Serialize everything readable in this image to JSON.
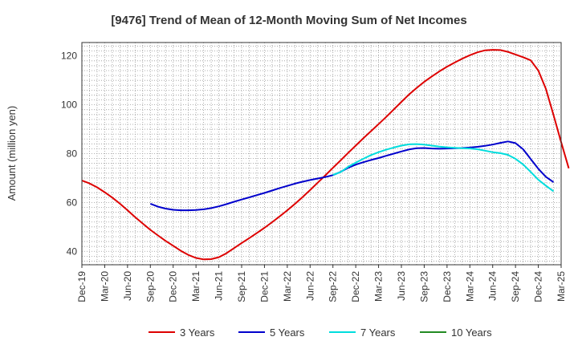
{
  "chart_data": {
    "type": "line",
    "title": "[9476]  Trend of Mean of 12-Month Moving Sum of Net Incomes",
    "ylabel": "Amount (million yen)",
    "xlabel": "",
    "ylim": [
      34.5,
      125.5
    ],
    "yticks": [
      40,
      60,
      80,
      100,
      120
    ],
    "x_ticks": [
      "Dec-19",
      "Mar-20",
      "Jun-20",
      "Sep-20",
      "Dec-20",
      "Mar-21",
      "Jun-21",
      "Sep-21",
      "Dec-21",
      "Mar-22",
      "Jun-22",
      "Sep-22",
      "Dec-22",
      "Mar-23",
      "Jun-23",
      "Sep-23",
      "Dec-23",
      "Mar-24",
      "Jun-24",
      "Sep-24",
      "Dec-24",
      "Mar-25"
    ],
    "grid": true,
    "legend_position": "bottom",
    "series": [
      {
        "name": "3 Years",
        "color": "#dd0000",
        "start_index": 0,
        "values": [
          69,
          67.8,
          66.2,
          64.2,
          62,
          59.5,
          56.8,
          54,
          51.4,
          48.8,
          46.5,
          44.3,
          42.3,
          40.2,
          38.5,
          37.3,
          36.7,
          36.8,
          37.6,
          39.2,
          41.3,
          43.4,
          45.4,
          47.5,
          49.6,
          51.9,
          54.3,
          56.8,
          59.4,
          62.2,
          65.1,
          68.1,
          71.1,
          74.2,
          77.2,
          80.3,
          83.3,
          86.3,
          89.2,
          92.1,
          95,
          98.1,
          101.2,
          104.2,
          106.9,
          109.4,
          111.6,
          113.7,
          115.6,
          117.3,
          118.9,
          120.3,
          121.5,
          122.3,
          122.5,
          122.4,
          121.7,
          120.6,
          119.5,
          118.2,
          114,
          106.5,
          95.8,
          84.7,
          74
        ]
      },
      {
        "name": "5 Years",
        "color": "#0000cc",
        "start_index": 9,
        "values": [
          59.5,
          58.3,
          57.5,
          57,
          56.8,
          56.8,
          56.9,
          57.2,
          57.7,
          58.4,
          59.3,
          60.3,
          61.2,
          62.1,
          63,
          63.9,
          64.9,
          65.9,
          66.8,
          67.7,
          68.5,
          69.2,
          69.8,
          70.4,
          71.2,
          72.5,
          74.2,
          75.5,
          76.5,
          77.4,
          78.2,
          79.1,
          80,
          80.9,
          81.7,
          82.2,
          82.3,
          82.1,
          82,
          82.1,
          82.2,
          82.3,
          82.5,
          82.8,
          83.2,
          83.7,
          84.4,
          85,
          84.3,
          81.8,
          77.8,
          73.8,
          70.5,
          68.3
        ]
      },
      {
        "name": "7 Years",
        "color": "#00dddd",
        "start_index": 33,
        "values": [
          71.3,
          72.4,
          74.6,
          76.3,
          77.9,
          79.4,
          80.6,
          81.6,
          82.5,
          83.3,
          83.8,
          83.9,
          83.7,
          83.3,
          82.9,
          82.6,
          82.4,
          82.2,
          82.1,
          81.8,
          81.2,
          80.6,
          80.2,
          79.5,
          77.9,
          75.6,
          72.5,
          69.3,
          66.9,
          64.6
        ]
      },
      {
        "name": "10 Years",
        "color": "#228b22",
        "start_index": 0,
        "values": []
      }
    ]
  }
}
